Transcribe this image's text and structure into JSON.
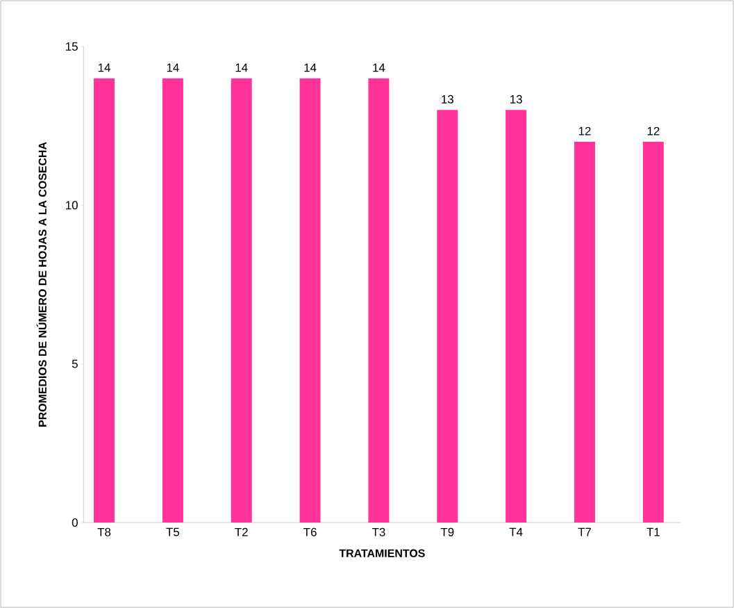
{
  "chart_data": {
    "type": "bar",
    "xlabel": "TRATAMIENTOS",
    "ylabel": "PROMEDIOS DE NÚMERO DE HOJAS A LA COSECHA",
    "categories": [
      "T8",
      "T5",
      "T2",
      "T6",
      "T3",
      "T9",
      "T4",
      "T7",
      "T1"
    ],
    "values": [
      14,
      14,
      14,
      14,
      14,
      13,
      13,
      12,
      12
    ],
    "color": "#ff3399",
    "ylim": [
      0,
      15
    ],
    "yticks": [
      0,
      5,
      10,
      15
    ],
    "data_labels": true
  }
}
